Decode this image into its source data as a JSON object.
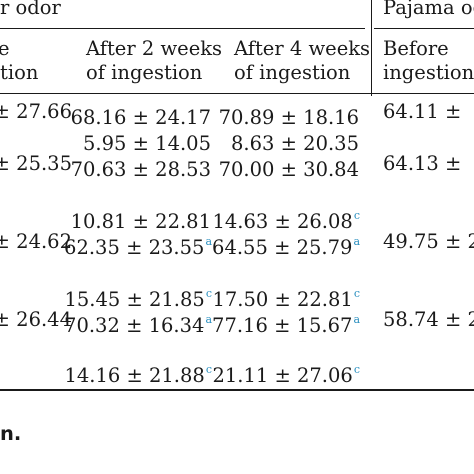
{
  "headers": {
    "group_left": "r odor",
    "group_right": "Pajama od",
    "col0_line1": "e",
    "col0_line2": "tion",
    "col1_line1": "After 2 weeks",
    "col1_line2": "of ingestion",
    "col2_line1": "After 4 weeks",
    "col2_line2": "of ingestion",
    "col3_line1": "Before",
    "col3_line2": "ingestion"
  },
  "rows": [
    {
      "c0": "± 27.66",
      "c1": "68.16 ± 24.17",
      "c1_sup": "",
      "c2": "70.89 ± 18.16",
      "c2_sup": "",
      "c3": "64.11 ±"
    },
    {
      "c0": "",
      "c1": "5.95 ± 14.05",
      "c1_sup": "",
      "c2": "8.63 ± 20.35",
      "c2_sup": "",
      "c3": ""
    },
    {
      "c0": "± 25.35",
      "c1": "70.63 ± 28.53",
      "c1_sup": "",
      "c2": "70.00 ± 30.84",
      "c2_sup": "",
      "c3": "64.13 ±"
    },
    {
      "c0": "",
      "c1": "10.81 ± 22.81",
      "c1_sup": "",
      "c2": "14.63 ± 26.08",
      "c2_sup": "c",
      "c3": ""
    },
    {
      "c0": "± 24.62",
      "c1": "62.35 ± 23.55",
      "c1_sup": "a",
      "c2": "64.55 ± 25.79",
      "c2_sup": "a",
      "c3": "49.75 ± 2"
    },
    {
      "c0": "",
      "c1": "15.45 ± 21.85",
      "c1_sup": "c",
      "c2": "17.50 ± 22.81",
      "c2_sup": "c",
      "c3": ""
    },
    {
      "c0": "± 26.44",
      "c1": "70.32 ± 16.34",
      "c1_sup": "a",
      "c2": "77.16 ± 15.67",
      "c2_sup": "a",
      "c3": "58.74 ± 2"
    },
    {
      "c0": "",
      "c1": "14.16 ± 21.88",
      "c1_sup": "c",
      "c2": "21.11 ± 27.06",
      "c2_sup": "c",
      "c3": ""
    }
  ],
  "footnote": "n."
}
